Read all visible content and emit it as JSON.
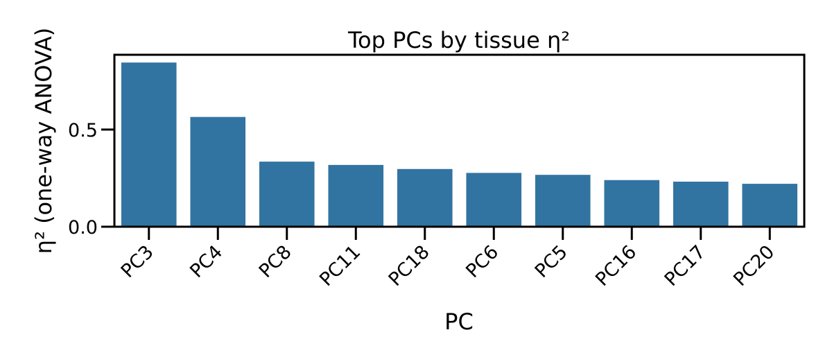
{
  "chart_data": {
    "type": "bar",
    "title": "Top PCs by tissue η²",
    "xlabel": "PC",
    "ylabel": "η² (one-way ANOVA)",
    "categories": [
      "PC3",
      "PC4",
      "PC8",
      "PC11",
      "PC18",
      "PC6",
      "PC5",
      "PC16",
      "PC17",
      "PC20"
    ],
    "values": [
      0.845,
      0.565,
      0.335,
      0.318,
      0.297,
      0.277,
      0.267,
      0.24,
      0.232,
      0.221
    ],
    "yticks": [
      {
        "value": 0.0,
        "label": "0.0"
      },
      {
        "value": 0.5,
        "label": "0.5"
      }
    ],
    "ylim": [
      0,
      0.885
    ],
    "bar_color": "#3274a1",
    "grid": false,
    "legend": "none"
  }
}
